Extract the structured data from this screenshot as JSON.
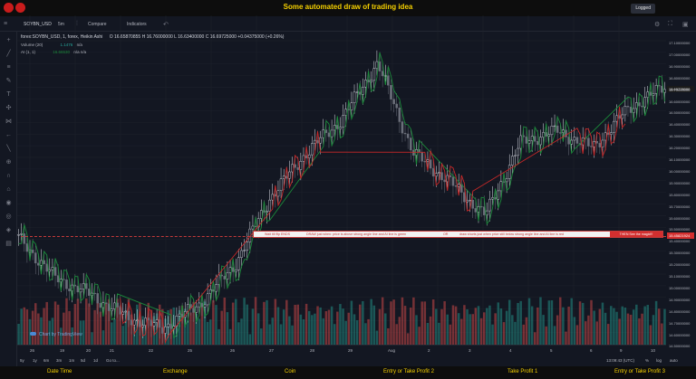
{
  "header": {
    "title": "Some automated draw of trading idea",
    "logged_label": "Logged"
  },
  "toolbar": {
    "symbol": "SOYBN_USD",
    "timeframe": "5m",
    "compare": "Compare",
    "indicators": "Indicators"
  },
  "legend": {
    "symbol_line": "forex:SOYBN_USD, 1, forex, Heikin Ashi",
    "ohlc": "O 16.65870855  H 16.76000000  L 16.63400000  C 16.69725000 +0.04375000 (+0.26%)",
    "volume_label": "Volume (20)",
    "volume_val": "1.1476",
    "volume_na": "n/a",
    "ai_label": "AI (1, 1)",
    "ai_val": "16.66530",
    "ai_na": "n/a n/a"
  },
  "annotation": {
    "part1": "Wait till flip ENDS",
    "part2": "DRAW just when:  price is above strong angle line and AI line is green",
    "part3": "OR",
    "part4": "draw shorts just when price still below strong angle line and AI line is red",
    "magic": "THEN See the magic!!!"
  },
  "price_axis": {
    "labels": [
      "17.10000000",
      "17.00000000",
      "16.90000000",
      "16.80000000",
      "16.70000000",
      "16.60000000",
      "16.50000000",
      "16.40000000",
      "16.30000000",
      "16.20000000",
      "16.10000000",
      "16.00000000",
      "15.90000000",
      "15.80000000",
      "15.70000000",
      "15.60000000",
      "15.50000000",
      "15.40000000",
      "15.30000000",
      "15.20000000",
      "15.10000000",
      "15.00000000",
      "14.90000000",
      "14.80000000",
      "14.70000000",
      "14.60000000",
      "14.50000000"
    ],
    "current": "16.69725000",
    "marker": "15.45821924"
  },
  "time_axis": {
    "labels": [
      "26",
      "19",
      "20",
      "21",
      "22",
      "25",
      "26",
      "27",
      "28",
      "29",
      "Aug",
      "2",
      "3",
      "4",
      "5",
      "6",
      "9",
      "10",
      "11",
      "12"
    ]
  },
  "bottom": {
    "ranges": [
      "5y",
      "1y",
      "6m",
      "3m",
      "1m",
      "5d",
      "1d",
      "Go to..."
    ],
    "timestamp": "13:09:43 (UTC)",
    "pct": "%",
    "log": "log",
    "auto": "auto"
  },
  "brand": "Chart by TradingView",
  "footer": {
    "items": [
      "Date Time",
      "Exchange",
      "Coin",
      "Entry or Take Profit 2",
      "Take Profit 1",
      "Entry or Take Profit 3"
    ]
  },
  "chart_data": {
    "type": "candlestick",
    "title": "",
    "ylim": [
      14.5,
      17.1
    ],
    "x": [
      "Jul 16",
      "Jul 19",
      "Jul 20",
      "Jul 21",
      "Jul 22",
      "Jul 23",
      "Jul 26",
      "Jul 27",
      "Jul 28",
      "Jul 29",
      "Jul 30",
      "Aug 2",
      "Aug 3",
      "Aug 4",
      "Aug 5",
      "Aug 6",
      "Aug 9",
      "Aug 10",
      "Aug 11"
    ],
    "close": [
      15.35,
      15.0,
      14.85,
      14.65,
      14.55,
      14.75,
      15.1,
      15.7,
      16.1,
      16.4,
      16.9,
      16.1,
      15.85,
      15.55,
      16.2,
      16.3,
      16.15,
      16.5,
      16.69
    ],
    "colors": {
      "up": "#26a69a",
      "down": "#ef5350",
      "ai_up": "#1b8a3a",
      "ai_down": "#c62828",
      "banner": "#d32f2f"
    }
  }
}
